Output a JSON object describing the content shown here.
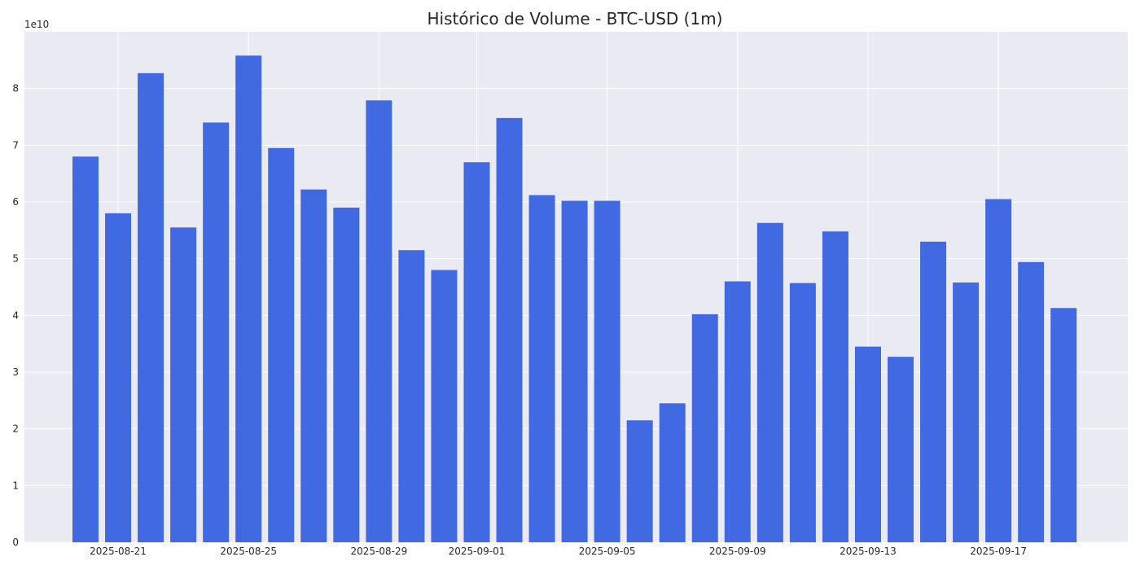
{
  "chart_data": {
    "type": "bar",
    "title": "Histórico de Volume - BTC-USD (1m)",
    "xlabel": "",
    "ylabel": "",
    "y_offset_label": "1e10",
    "y_multiplier": 10000000000,
    "ylim": [
      0,
      9.0
    ],
    "y_ticks": [
      0,
      1,
      2,
      3,
      4,
      5,
      6,
      7,
      8
    ],
    "grid": true,
    "bar_color": "#4169e1",
    "background": "#eaeaf2",
    "dates": [
      "2025-08-20",
      "2025-08-21",
      "2025-08-22",
      "2025-08-23",
      "2025-08-24",
      "2025-08-25",
      "2025-08-26",
      "2025-08-27",
      "2025-08-28",
      "2025-08-29",
      "2025-08-30",
      "2025-08-31",
      "2025-09-01",
      "2025-09-02",
      "2025-09-03",
      "2025-09-04",
      "2025-09-05",
      "2025-09-06",
      "2025-09-07",
      "2025-09-08",
      "2025-09-09",
      "2025-09-10",
      "2025-09-11",
      "2025-09-12",
      "2025-09-13",
      "2025-09-14",
      "2025-09-15",
      "2025-09-16",
      "2025-09-17",
      "2025-09-18",
      "2025-09-19"
    ],
    "values": [
      6.8,
      5.8,
      8.27,
      5.55,
      7.4,
      8.58,
      6.95,
      6.22,
      5.9,
      7.79,
      5.15,
      4.8,
      6.7,
      7.48,
      6.12,
      6.02,
      6.02,
      2.15,
      2.45,
      4.02,
      4.6,
      5.63,
      4.57,
      5.48,
      3.45,
      3.27,
      5.3,
      4.58,
      6.05,
      4.94,
      4.13
    ],
    "x_tick_labels": [
      "2025-08-21",
      "2025-08-25",
      "2025-08-29",
      "2025-09-01",
      "2025-09-05",
      "2025-09-09",
      "2025-09-13",
      "2025-09-17"
    ]
  }
}
